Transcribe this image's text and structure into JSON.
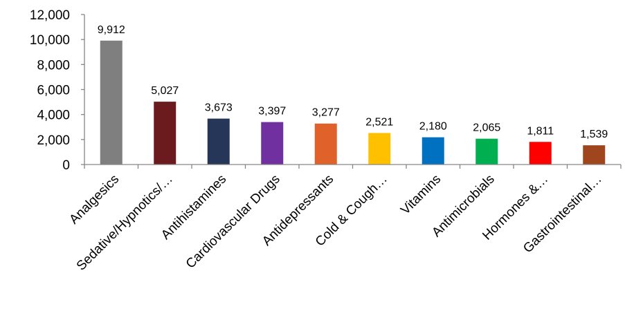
{
  "chart_data": {
    "type": "bar",
    "title": "",
    "xlabel": "",
    "ylabel": "",
    "ylim": [
      0,
      12000
    ],
    "yticks": [
      0,
      2000,
      4000,
      6000,
      8000,
      10000,
      12000
    ],
    "ytick_labels": [
      "0",
      "2,000",
      "4,000",
      "6,000",
      "8,000",
      "10,000",
      "12,000"
    ],
    "grid": false,
    "legend": "none",
    "categories": [
      "Analgesics",
      "Sedative/Hypnotics/…",
      "Antihistamines",
      "Cardiovascular Drugs",
      "Antidepressants",
      "Cold & Cough…",
      "Vitamins",
      "Antimicrobials",
      "Hormones &…",
      "Gastrointestinal…"
    ],
    "values": [
      9912,
      5027,
      3673,
      3397,
      3277,
      2521,
      2180,
      2065,
      1811,
      1539
    ],
    "value_labels": [
      "9,912",
      "5,027",
      "3,673",
      "3,397",
      "3,277",
      "2,521",
      "2,180",
      "2,065",
      "1,811",
      "1,539"
    ],
    "colors": [
      "#7f7f7f",
      "#6b1a1e",
      "#253659",
      "#7030a0",
      "#e0622a",
      "#ffc000",
      "#0070c0",
      "#00b050",
      "#ff0000",
      "#a0461f"
    ],
    "axis_color": "#868686"
  }
}
